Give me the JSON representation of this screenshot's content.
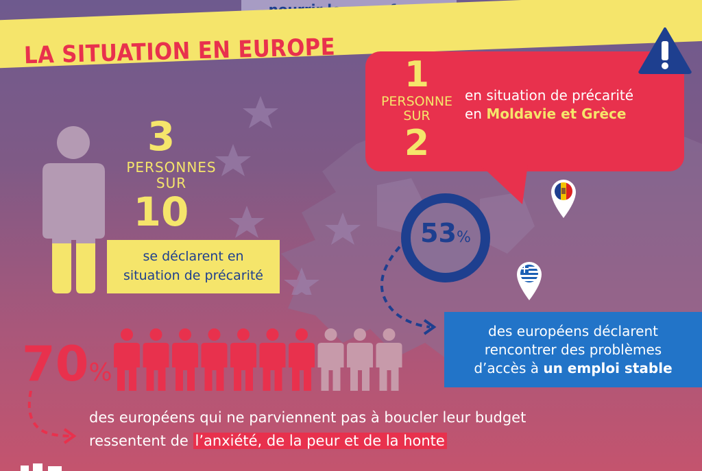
{
  "header": {
    "tab_text": "nourrir leurs enfants"
  },
  "banner": {
    "title": "LA SITUATION  EN EUROPE"
  },
  "stat_left": {
    "numerator": "3",
    "line1": "PERSONNES",
    "line2": "SUR",
    "denominator": "10",
    "text1": "se déclarent en",
    "text2": "situation de précarité",
    "fraction_shown": 0.3
  },
  "stat_bubble": {
    "numerator": "1",
    "line1": "PERSONNE",
    "line2": "SUR",
    "denominator": "2",
    "text1": "en situation de précarité",
    "text2_prefix": "en ",
    "text2_bold": "Moldavie et Grèce"
  },
  "stat_ring": {
    "value": "53",
    "unit": "%",
    "text1": "des européens déclarent",
    "text2": "rencontrer des problèmes",
    "text3_prefix": "d’accès à ",
    "text3_bold": "un emploi stable"
  },
  "stat_bottom": {
    "value": "70",
    "unit": "%",
    "people_total": 10,
    "people_highlighted": 7,
    "text1": "des européens qui ne parviennent pas à boucler leur budget",
    "text2_prefix": "ressentent de ",
    "text2_highlight": "l’anxiété, de la peur et de la honte"
  },
  "icons": {
    "warning": "warning-icon",
    "flag_md": "moldova-flag-icon",
    "flag_gr": "greece-flag-icon"
  },
  "colors": {
    "yellow": "#f5e56b",
    "red": "#e8314d",
    "navy": "#1e3f8f",
    "blue": "#2274c8"
  }
}
